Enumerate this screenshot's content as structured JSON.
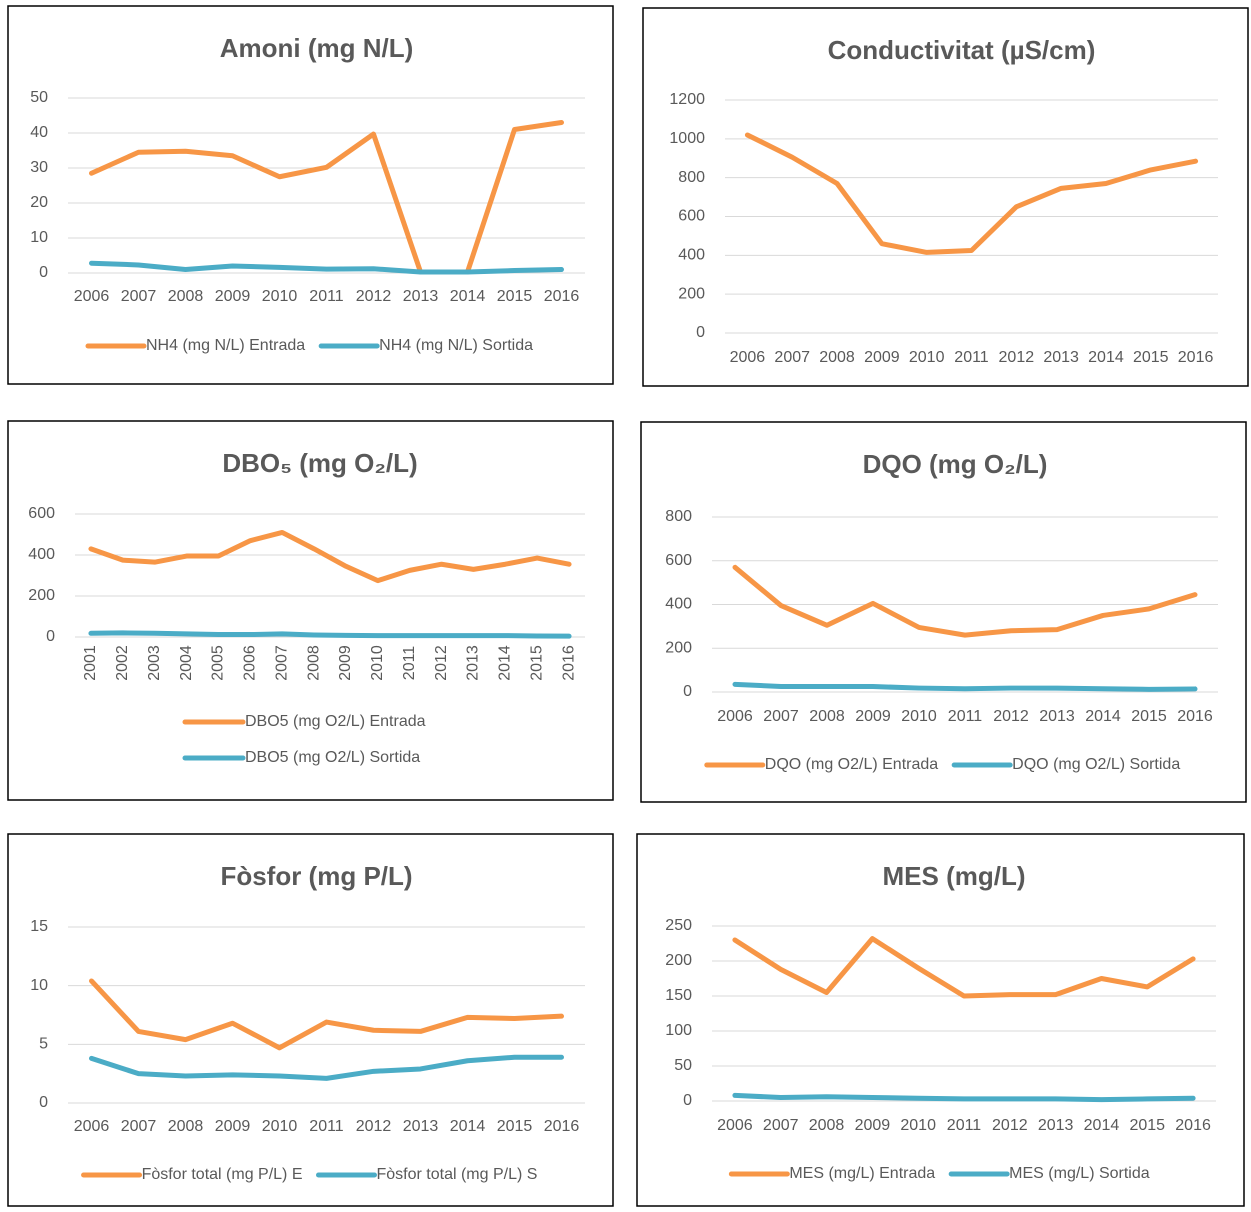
{
  "chart_data": [
    {
      "type": "line",
      "title": "Amoni (mg N/L)",
      "categories": [
        "2006",
        "2007",
        "2008",
        "2009",
        "2010",
        "2011",
        "2012",
        "2013",
        "2014",
        "2015",
        "2016"
      ],
      "series": [
        {
          "name": "NH4 (mg N/L) Entrada",
          "color": "#f79646",
          "values": [
            28.5,
            34.5,
            34.8,
            33.5,
            27.5,
            30.2,
            39.7,
            0.3,
            0.3,
            41,
            43
          ]
        },
        {
          "name": "NH4 (mg N/L) Sortida",
          "color": "#4bacc6",
          "values": [
            2.8,
            2.3,
            1.0,
            2.0,
            1.6,
            1.1,
            1.2,
            0.3,
            0.3,
            0.7,
            1.0
          ]
        }
      ],
      "ylim": [
        0,
        50
      ],
      "yticks": [
        0,
        10,
        20,
        30,
        40,
        50
      ],
      "grid": true,
      "legend": "bottom"
    },
    {
      "type": "line",
      "title": "Conductivitat (µS/cm)",
      "categories": [
        "2006",
        "2007",
        "2008",
        "2009",
        "2010",
        "2011",
        "2012",
        "2013",
        "2014",
        "2015",
        "2016"
      ],
      "series": [
        {
          "color": "#f79646",
          "values": [
            1020,
            905,
            770,
            460,
            415,
            425,
            650,
            745,
            770,
            840,
            885
          ]
        }
      ],
      "ylim": [
        0,
        1200
      ],
      "yticks": [
        0,
        200,
        400,
        600,
        800,
        1000,
        1200
      ],
      "grid": true
    },
    {
      "type": "line",
      "title": "DBO₅ (mg O₂/L)",
      "categories": [
        "2001",
        "2002",
        "2003",
        "2004",
        "2005",
        "2006",
        "2007",
        "2008",
        "2009",
        "2010",
        "2011",
        "2012",
        "2013",
        "2014",
        "2015",
        "2016"
      ],
      "series": [
        {
          "name": "DBO5 (mg O2/L) Entrada",
          "color": "#f79646",
          "values": [
            430,
            375,
            365,
            395,
            395,
            470,
            510,
            430,
            345,
            275,
            325,
            355,
            330,
            355,
            385,
            355
          ]
        },
        {
          "name": "DBO5 (mg O2/L) Sortida",
          "color": "#4bacc6",
          "values": [
            18,
            20,
            18,
            15,
            12,
            12,
            15,
            10,
            8,
            7,
            7,
            7,
            7,
            7,
            5,
            4
          ]
        }
      ],
      "ylim": [
        0,
        600
      ],
      "yticks": [
        0,
        200,
        400,
        600
      ],
      "grid": true,
      "legend": "bottom"
    },
    {
      "type": "line",
      "title": "DQO (mg O₂/L)",
      "categories": [
        "2006",
        "2007",
        "2008",
        "2009",
        "2010",
        "2011",
        "2012",
        "2013",
        "2014",
        "2015",
        "2016"
      ],
      "series": [
        {
          "name": "DQO (mg O2/L) Entrada",
          "color": "#f79646",
          "values": [
            570,
            395,
            305,
            405,
            295,
            260,
            280,
            285,
            350,
            380,
            445
          ]
        },
        {
          "name": "DQO (mg O2/L) Sortida",
          "color": "#4bacc6",
          "values": [
            35,
            25,
            25,
            25,
            18,
            15,
            18,
            18,
            15,
            12,
            14
          ]
        }
      ],
      "ylim": [
        0,
        800
      ],
      "yticks": [
        0,
        200,
        400,
        600,
        800
      ],
      "grid": true,
      "legend": "bottom"
    },
    {
      "type": "line",
      "title": "Fòsfor (mg P/L)",
      "categories": [
        "2006",
        "2007",
        "2008",
        "2009",
        "2010",
        "2011",
        "2012",
        "2013",
        "2014",
        "2015",
        "2016"
      ],
      "series": [
        {
          "name": "Fòsfor total (mg P/L) E",
          "color": "#f79646",
          "values": [
            10.4,
            6.1,
            5.4,
            6.8,
            4.7,
            6.9,
            6.2,
            6.1,
            7.3,
            7.2,
            7.4
          ]
        },
        {
          "name": "Fòsfor total (mg P/L) S",
          "color": "#4bacc6",
          "values": [
            3.8,
            2.5,
            2.3,
            2.4,
            2.3,
            2.1,
            2.7,
            2.9,
            3.6,
            3.9,
            3.9
          ]
        }
      ],
      "ylim": [
        0,
        15
      ],
      "yticks": [
        0,
        5,
        10,
        15
      ],
      "grid": true,
      "legend": "bottom"
    },
    {
      "type": "line",
      "title": "MES (mg/L)",
      "categories": [
        "2006",
        "2007",
        "2008",
        "2009",
        "2010",
        "2011",
        "2012",
        "2013",
        "2014",
        "2015",
        "2016"
      ],
      "series": [
        {
          "name": "MES (mg/L) Entrada",
          "color": "#f79646",
          "values": [
            230,
            188,
            155,
            232,
            190,
            150,
            152,
            152,
            175,
            163,
            203
          ]
        },
        {
          "name": "MES (mg/L) Sortida",
          "color": "#4bacc6",
          "values": [
            8,
            5,
            6,
            5,
            4,
            3,
            3,
            3,
            2,
            3,
            4
          ]
        }
      ],
      "ylim": [
        0,
        250
      ],
      "yticks": [
        0,
        50,
        100,
        150,
        200,
        250
      ],
      "grid": true,
      "legend": "bottom"
    }
  ]
}
